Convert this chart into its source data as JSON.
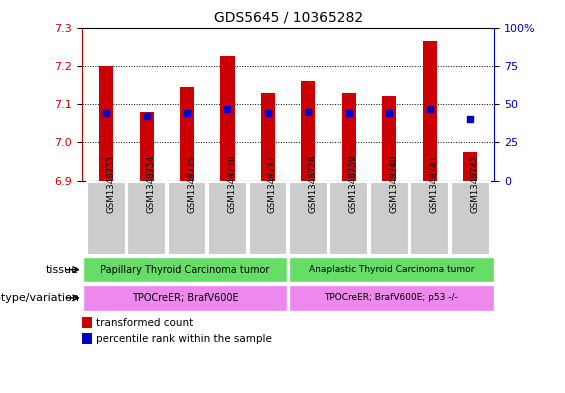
{
  "title": "GDS5645 / 10365282",
  "samples": [
    "GSM1348733",
    "GSM1348734",
    "GSM1348735",
    "GSM1348736",
    "GSM1348737",
    "GSM1348738",
    "GSM1348739",
    "GSM1348740",
    "GSM1348741",
    "GSM1348742"
  ],
  "transformed_count": [
    7.2,
    7.08,
    7.145,
    7.225,
    7.13,
    7.16,
    7.13,
    7.12,
    7.265,
    6.975
  ],
  "percentile_rank": [
    44,
    42,
    44,
    47,
    44,
    45,
    44,
    44,
    47,
    40
  ],
  "bar_bottom": 6.9,
  "ylim_left": [
    6.9,
    7.3
  ],
  "ylim_right": [
    0,
    100
  ],
  "yticks_left": [
    6.9,
    7.0,
    7.1,
    7.2,
    7.3
  ],
  "yticks_right": [
    0,
    25,
    50,
    75,
    100
  ],
  "bar_color": "#cc0000",
  "percentile_color": "#0000cc",
  "tissue_labels": [
    "Papillary Thyroid Carcinoma tumor",
    "Anaplastic Thyroid Carcinoma tumor"
  ],
  "tissue_colors": [
    "#66dd66",
    "#66dd66"
  ],
  "tissue_split": 5,
  "genotype_labels": [
    "TPOCreER; BrafV600E",
    "TPOCreER; BrafV600E; p53 -/-"
  ],
  "genotype_colors": [
    "#ee88ee",
    "#ee88ee"
  ],
  "genotype_split": 5,
  "legend_red_label": "transformed count",
  "legend_blue_label": "percentile rank within the sample",
  "tissue_row_label": "tissue",
  "genotype_row_label": "genotype/variation",
  "left_axis_color": "#cc0000",
  "right_axis_color": "#0000cc",
  "bg_color": "#ffffff",
  "bar_width": 0.35
}
